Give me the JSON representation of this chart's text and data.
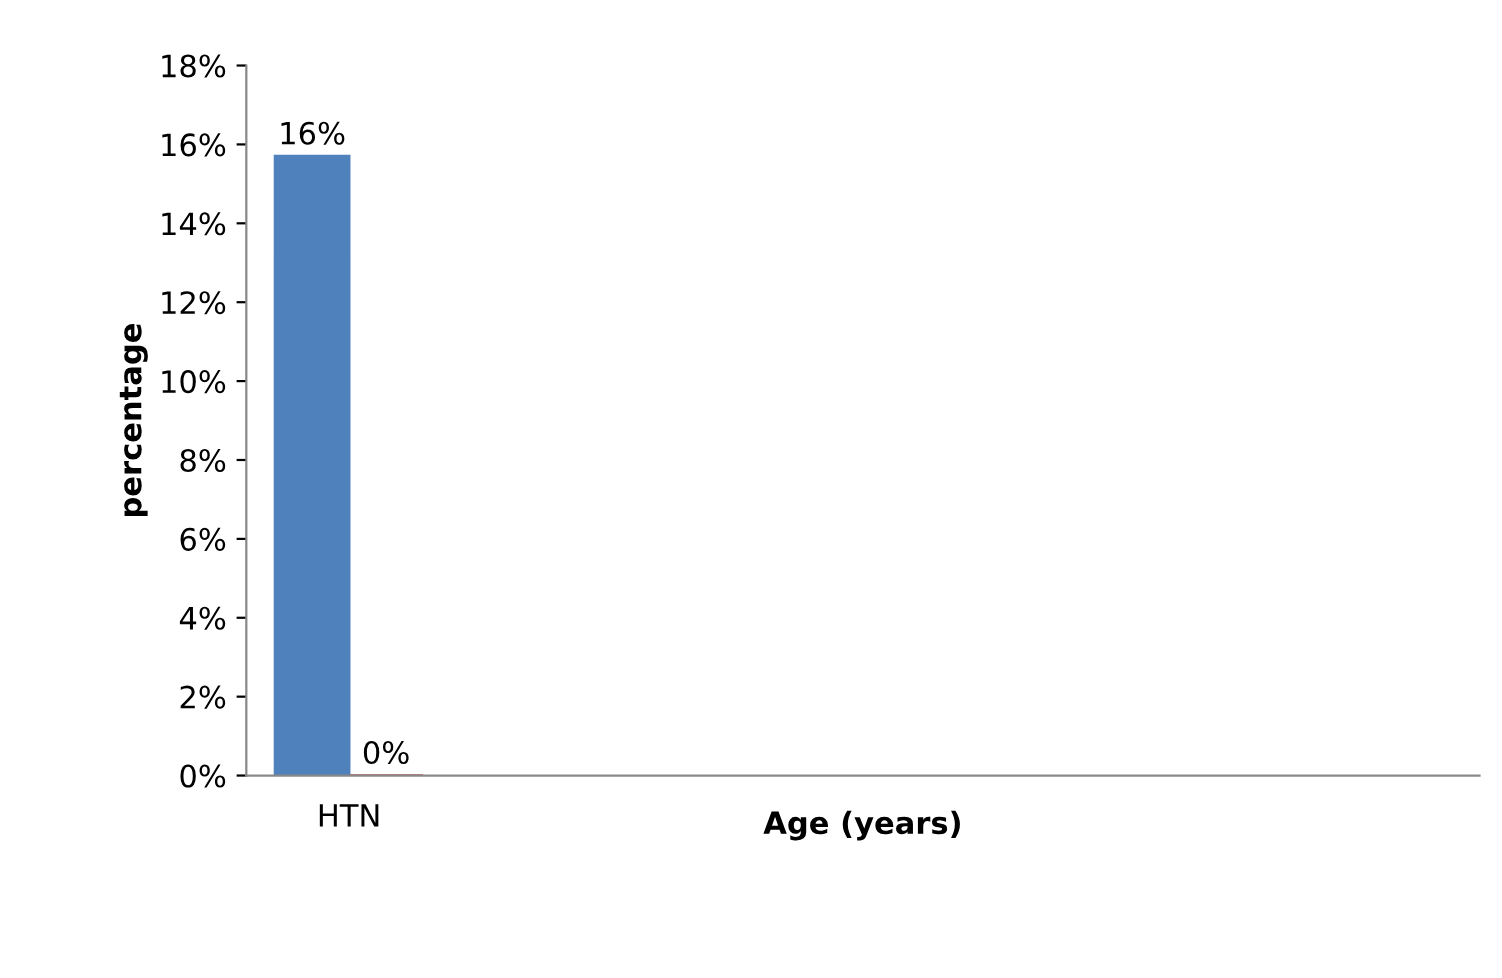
{
  "chart_data": {
    "type": "bar",
    "xlabel": "Age (years)",
    "ylabel": "percentage",
    "categories": [
      "HTN",
      null,
      null,
      null,
      null,
      null
    ],
    "series": [
      {
        "color": "#4f81bd",
        "values": [
          15.7,
          null,
          null,
          null,
          null,
          null
        ],
        "value_labels": [
          "16%",
          null,
          null,
          null,
          null,
          null
        ]
      },
      {
        "color": "#c0504d",
        "values": [
          0,
          null,
          null,
          null,
          null,
          null
        ],
        "value_labels": [
          "0%",
          null,
          null,
          null,
          null,
          null
        ]
      }
    ],
    "ylim": [
      0,
      18
    ],
    "yticks": [
      {
        "value": 0,
        "label": "0%"
      },
      {
        "value": 2,
        "label": "2%"
      },
      {
        "value": 4,
        "label": "4%"
      },
      {
        "value": 6,
        "label": "6%"
      },
      {
        "value": 8,
        "label": "8%"
      },
      {
        "value": 10,
        "label": "10%"
      },
      {
        "value": 12,
        "label": "12%"
      },
      {
        "value": 14,
        "label": "14%"
      },
      {
        "value": 16,
        "label": "16%"
      },
      {
        "value": 18,
        "label": "18%"
      }
    ],
    "grid": false,
    "legend": false
  }
}
